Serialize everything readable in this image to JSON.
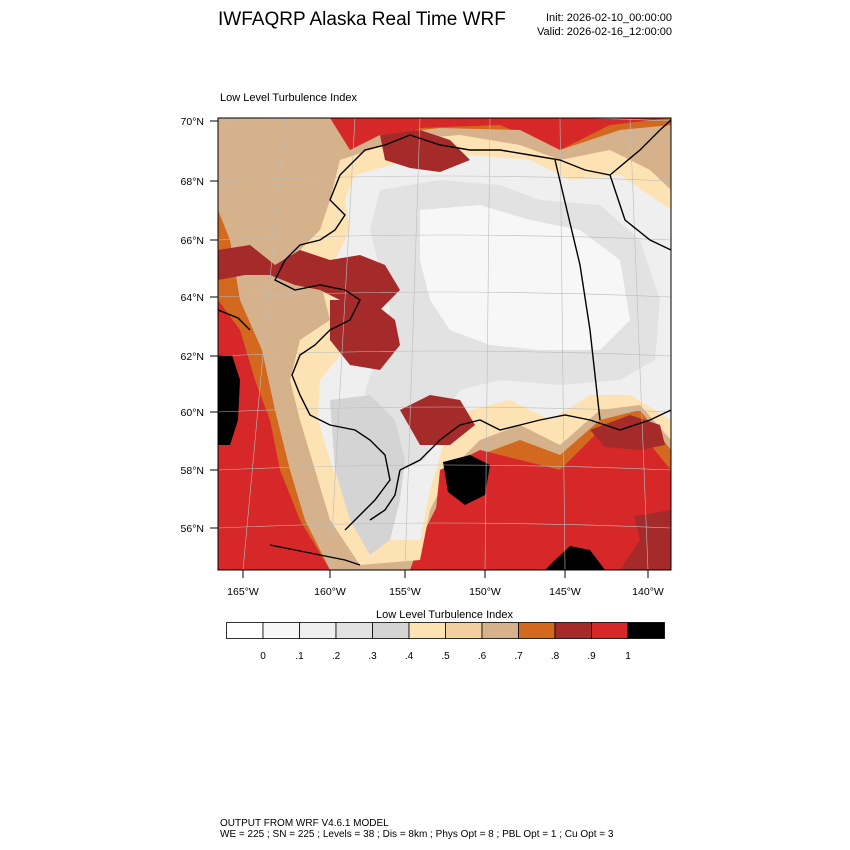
{
  "header": {
    "title": "IWFAQRP Alaska Real Time WRF",
    "init": "Init: 2026-02-10_00:00:00",
    "valid": "Valid: 2026-02-16_12:00:00"
  },
  "panel": {
    "title": "Low Level Turbulence Index",
    "lat_labels": [
      "70°N",
      "68°N",
      "66°N",
      "64°N",
      "62°N",
      "60°N",
      "58°N",
      "56°N"
    ],
    "lon_labels": [
      "165°W",
      "160°W",
      "155°W",
      "150°W",
      "145°W",
      "140°W"
    ]
  },
  "colorbar": {
    "title": "Low Level Turbulence Index",
    "labels": [
      "0",
      ".1",
      ".2",
      ".3",
      ".4",
      ".5",
      ".6",
      ".7",
      ".8",
      ".9",
      "1"
    ],
    "colors": [
      "#ffffff",
      "#f7f7f7",
      "#efefef",
      "#e2e2e2",
      "#d4d4d4",
      "#fde3b3",
      "#f2cf9e",
      "#d5b28c",
      "#d2691e",
      "#a52a2a",
      "#d62828",
      "#000000"
    ]
  },
  "footer": {
    "line1": "OUTPUT FROM WRF V4.6.1 MODEL",
    "line2": "WE = 225 ; SN = 225 ; Levels = 38 ; Dis = 8km ; Phys Opt = 8 ; PBL Opt = 1 ; Cu Opt = 3"
  }
}
